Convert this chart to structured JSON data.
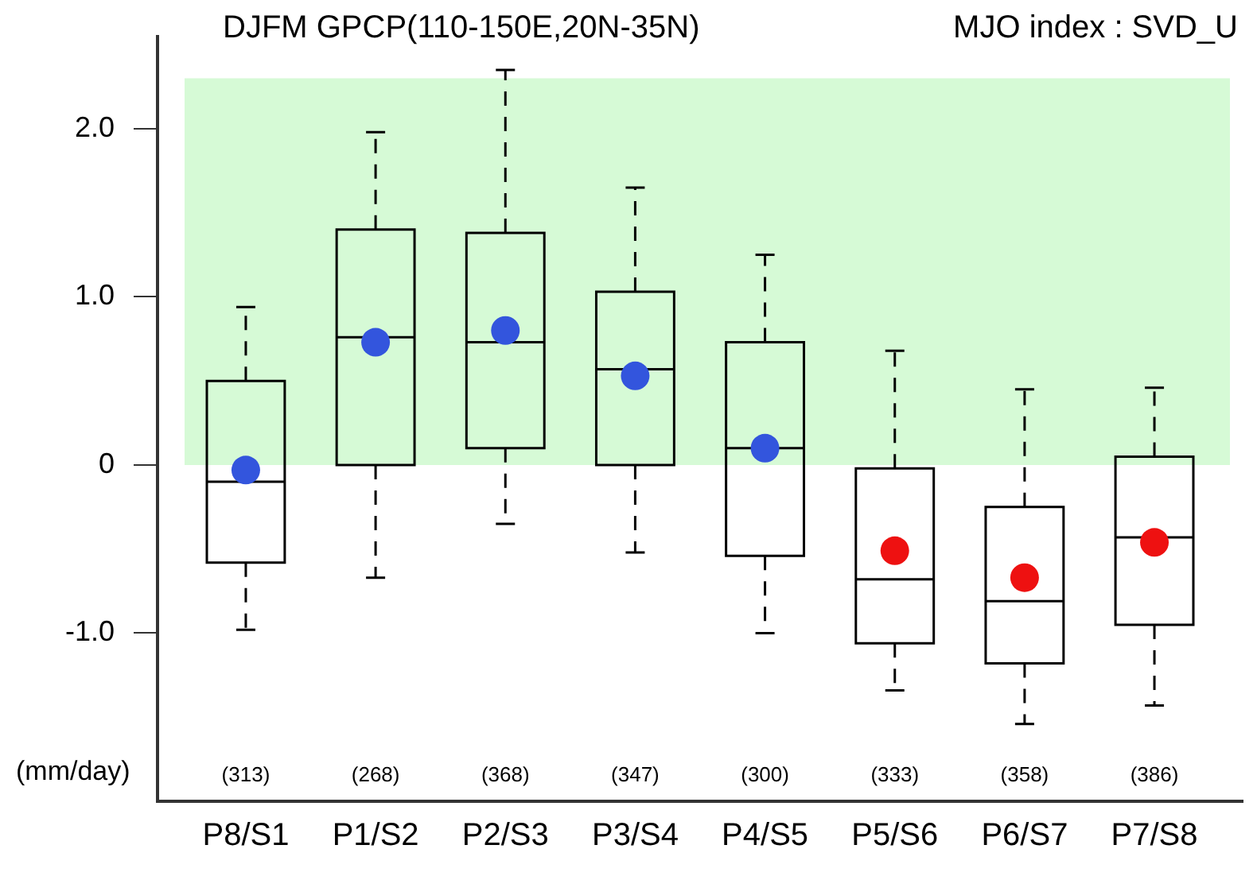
{
  "chart_data": {
    "type": "box",
    "title": "DJFM GPCP(110-150E,20N-35N)",
    "subtitle": "MJO index : SVD_U",
    "ylabel": "(mm/day)",
    "categories": [
      "P8/S1",
      "P1/S2",
      "P2/S3",
      "P3/S4",
      "P4/S5",
      "P5/S6",
      "P6/S7",
      "P7/S8"
    ],
    "series": [
      {
        "color": "#000000",
        "boxes": [
          {
            "low": -0.98,
            "q1": -0.58,
            "median": -0.1,
            "q3": 0.5,
            "high": 0.94
          },
          {
            "low": -0.67,
            "q1": 0,
            "median": 0.76,
            "q3": 1.4,
            "high": 1.98
          },
          {
            "low": -0.35,
            "q1": 0.1,
            "median": 0.73,
            "q3": 1.38,
            "high": 2.35
          },
          {
            "low": -0.52,
            "q1": 0,
            "median": 0.57,
            "q3": 1.03,
            "high": 1.65
          },
          {
            "low": -1.0,
            "q1": -0.54,
            "median": 0.1,
            "q3": 0.73,
            "high": 1.25
          },
          {
            "low": -1.34,
            "q1": -1.06,
            "median": -0.68,
            "q3": -0.02,
            "high": 0.68
          },
          {
            "low": -1.54,
            "q1": -1.18,
            "median": -0.81,
            "q3": -0.25,
            "high": 0.45
          },
          {
            "low": -1.43,
            "q1": -0.95,
            "median": -0.43,
            "q3": 0.05,
            "high": 0.46
          }
        ]
      },
      {
        "type": "scatter",
        "x": [
          "P8/S1",
          "P1/S2",
          "P2/S3",
          "P3/S4",
          "P4/S5",
          "P5/S6",
          "P6/S7",
          "P7/S8"
        ],
        "values": [
          -0.03,
          0.73,
          0.8,
          0.53,
          0.1,
          -0.51,
          -0.67,
          -0.46
        ],
        "colors": [
          "#3355dd",
          "#3355dd",
          "#3355dd",
          "#3355dd",
          "#3355dd",
          "#ee1111",
          "#ee1111",
          "#ee1111"
        ]
      }
    ],
    "marker": "circle",
    "ylim": [
      -2,
      2.55
    ],
    "yticks": [
      {
        "value": -1,
        "label": "-1.0"
      },
      {
        "value": 0,
        "label": "0"
      },
      {
        "value": 1,
        "label": "1.0"
      },
      {
        "value": 2,
        "label": "2.0"
      }
    ],
    "bands": [
      {
        "axis": "y",
        "from": 0,
        "to": 2.3,
        "color": "#d6fad6"
      }
    ],
    "annotations": [
      "(313)",
      "(268)",
      "(368)",
      "(347)",
      "(300)",
      "(333)",
      "(358)",
      "(386)"
    ]
  }
}
